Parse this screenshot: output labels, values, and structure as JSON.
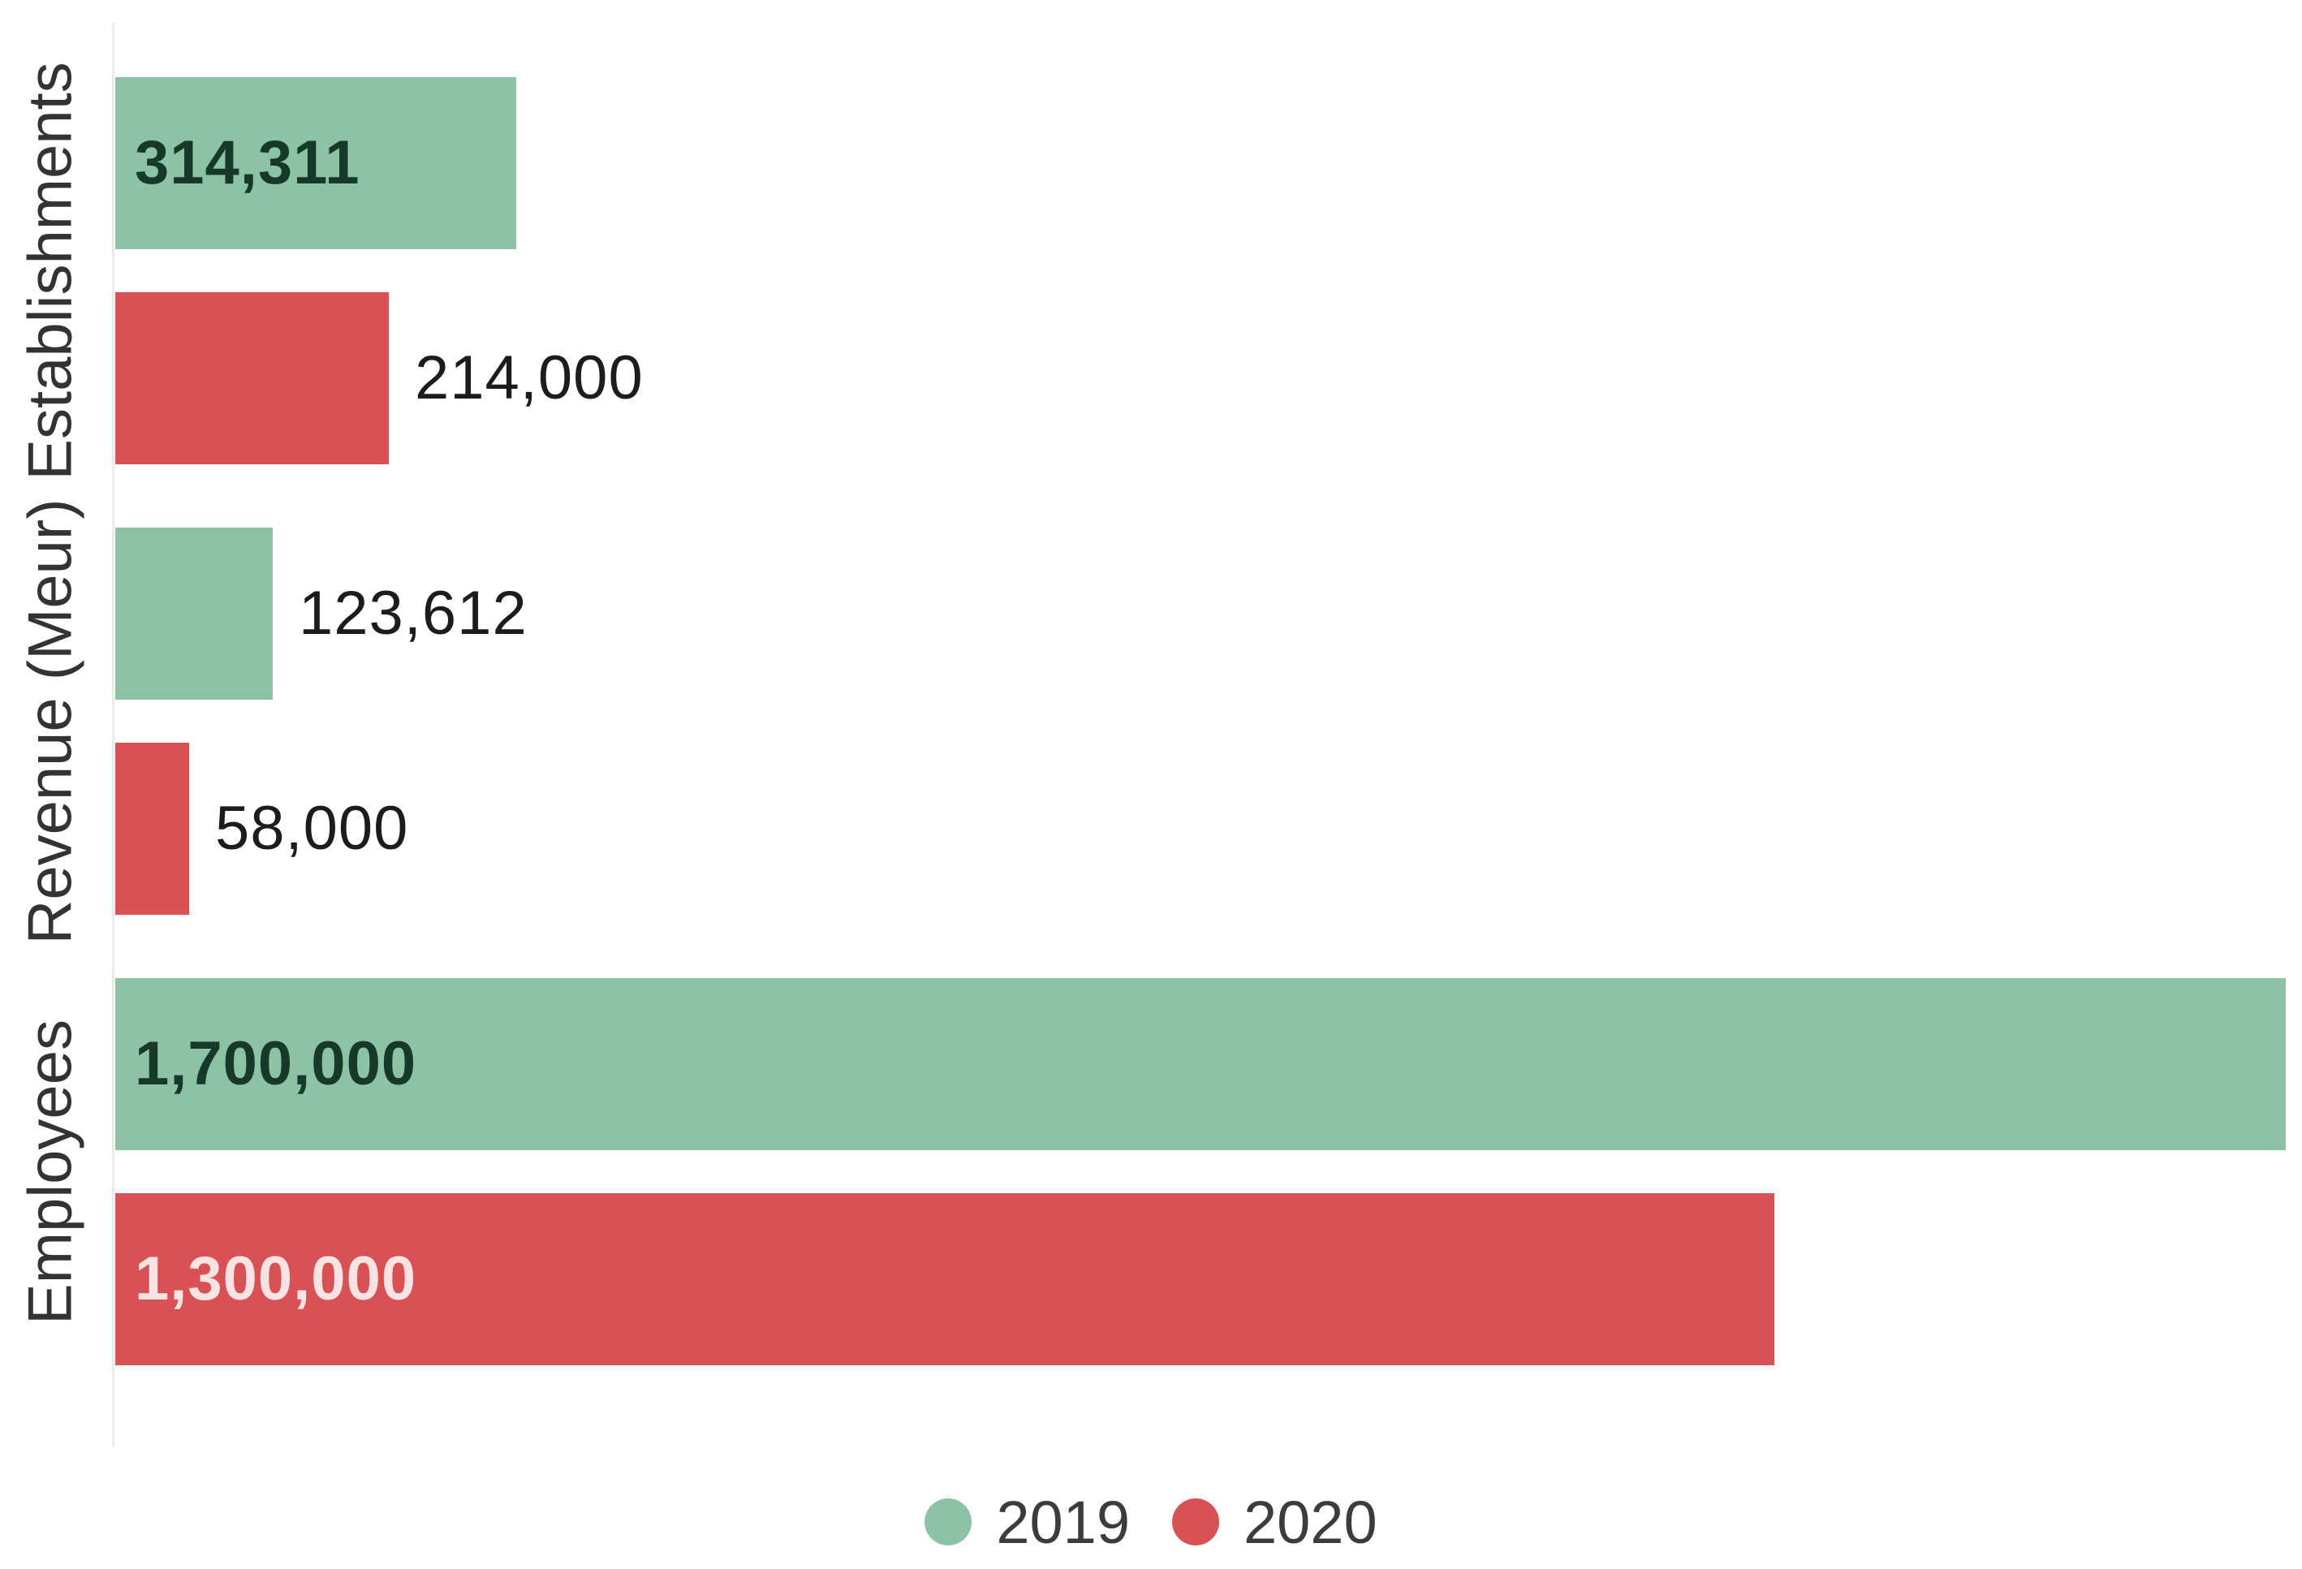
{
  "chart_data": {
    "type": "bar",
    "orientation": "horizontal",
    "title": "",
    "xlabel": "",
    "ylabel": "",
    "categories": [
      "Establishments",
      "Revenue (Meur)",
      "Employees"
    ],
    "series": [
      {
        "name": "2019",
        "color": "#8cc3a5",
        "inside_label_color": "#17392a",
        "values": [
          314311,
          123612,
          1700000
        ],
        "value_labels": [
          "314,311",
          "123,612",
          "1,700,000"
        ]
      },
      {
        "name": "2020",
        "color": "#d85154",
        "inside_label_color": "#fbe3e3",
        "values": [
          214000,
          58000,
          1300000
        ],
        "value_labels": [
          "214,000",
          "58,000",
          "1,300,000"
        ]
      }
    ],
    "xlim": [
      0,
      1713000
    ],
    "grid": false,
    "legend_position": "bottom",
    "annotations": "value labels shown inside wide bars, outside short bars"
  },
  "legend": {
    "items": [
      {
        "label": "2019",
        "color": "#8cc3a5"
      },
      {
        "label": "2020",
        "color": "#d85154"
      }
    ]
  },
  "colors": {
    "background": "#ffffff",
    "axis_line": "#ececec",
    "category_label_text": "#333333",
    "outside_label_text": "#1c1c1c",
    "legend_text": "#3c3c3c"
  }
}
